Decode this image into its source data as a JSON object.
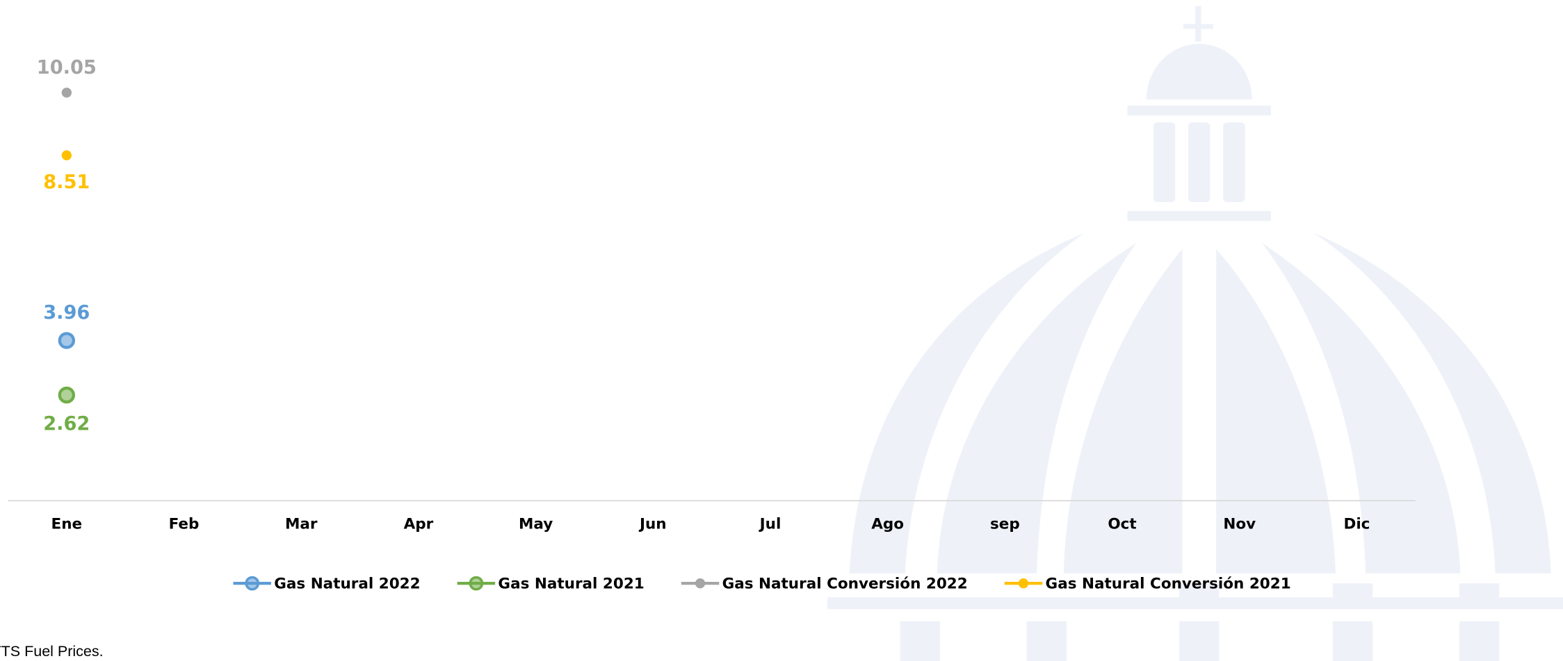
{
  "chart_data": {
    "type": "line",
    "categories": [
      "Ene",
      "Feb",
      "Mar",
      "Apr",
      "May",
      "Jun",
      "Jul",
      "Ago",
      "sep",
      "Oct",
      "Nov",
      "Dic"
    ],
    "series": [
      {
        "name": "Gas Natural 2022",
        "color": "#5b9bd5",
        "values": [
          3.96,
          null,
          null,
          null,
          null,
          null,
          null,
          null,
          null,
          null,
          null,
          null
        ]
      },
      {
        "name": "Gas Natural 2021",
        "color": "#70ad47",
        "values": [
          2.62,
          null,
          null,
          null,
          null,
          null,
          null,
          null,
          null,
          null,
          null,
          null
        ]
      },
      {
        "name": "Gas Natural Conversión 2022",
        "color": "#a5a5a5",
        "values": [
          10.05,
          null,
          null,
          null,
          null,
          null,
          null,
          null,
          null,
          null,
          null,
          null
        ]
      },
      {
        "name": "Gas Natural Conversión 2021",
        "color": "#ffc000",
        "values": [
          8.51,
          null,
          null,
          null,
          null,
          null,
          null,
          null,
          null,
          null,
          null,
          null
        ]
      }
    ],
    "ylim": [
      0,
      12.3
    ],
    "legend": "bottom",
    "source": "TTS Fuel Prices."
  }
}
